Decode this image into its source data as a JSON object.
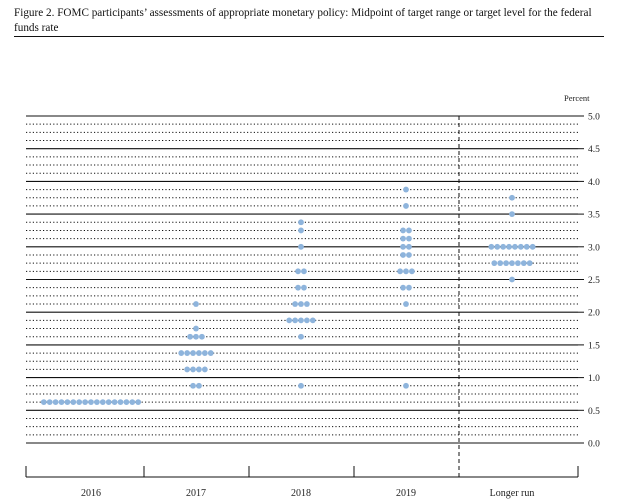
{
  "figure": {
    "title": "Figure 2. FOMC participants’ assessments of appropriate monetary policy: Midpoint of target range or target level for the federal funds rate"
  },
  "chart_data": {
    "type": "scatter",
    "title": "Figure 2. FOMC participants’ assessments of appropriate monetary policy: Midpoint of target range or target level for the federal funds rate",
    "ylabel": "Percent",
    "xlabel": "",
    "ylim": [
      0,
      5
    ],
    "yticks": [
      0.0,
      0.5,
      1.0,
      1.5,
      2.0,
      2.5,
      3.0,
      3.5,
      4.0,
      4.5,
      5.0
    ],
    "ytick_labels": [
      "0.0",
      "0.5",
      "1.0",
      "1.5",
      "2.0",
      "2.5",
      "3.0",
      "3.5",
      "4.0",
      "4.5",
      "5.0"
    ],
    "grid": "dotted horizontal every 0.125, solid every 0.5",
    "separator": "dashed vertical line between 2019 and Longer run",
    "categories": [
      "2016",
      "2017",
      "2018",
      "2019",
      "Longer run"
    ],
    "dot_color": "#8eb4dc",
    "dots": [
      {
        "category": "2016",
        "rates": [
          {
            "y": 0.625,
            "count": 17
          }
        ]
      },
      {
        "category": "2017",
        "rates": [
          {
            "y": 0.875,
            "count": 2
          },
          {
            "y": 1.125,
            "count": 4
          },
          {
            "y": 1.375,
            "count": 6
          },
          {
            "y": 1.625,
            "count": 3
          },
          {
            "y": 1.75,
            "count": 1
          },
          {
            "y": 2.125,
            "count": 1
          }
        ]
      },
      {
        "category": "2018",
        "rates": [
          {
            "y": 0.875,
            "count": 1
          },
          {
            "y": 1.625,
            "count": 1
          },
          {
            "y": 1.875,
            "count": 5
          },
          {
            "y": 2.125,
            "count": 3
          },
          {
            "y": 2.375,
            "count": 2
          },
          {
            "y": 2.625,
            "count": 2
          },
          {
            "y": 3.0,
            "count": 1
          },
          {
            "y": 3.25,
            "count": 1
          },
          {
            "y": 3.375,
            "count": 1
          }
        ]
      },
      {
        "category": "2019",
        "rates": [
          {
            "y": 0.875,
            "count": 1
          },
          {
            "y": 2.125,
            "count": 1
          },
          {
            "y": 2.375,
            "count": 2
          },
          {
            "y": 2.625,
            "count": 3
          },
          {
            "y": 2.875,
            "count": 2
          },
          {
            "y": 3.0,
            "count": 2
          },
          {
            "y": 3.125,
            "count": 2
          },
          {
            "y": 3.25,
            "count": 2
          },
          {
            "y": 3.625,
            "count": 1
          },
          {
            "y": 3.875,
            "count": 1
          }
        ]
      },
      {
        "category": "Longer run",
        "rates": [
          {
            "y": 2.5,
            "count": 1
          },
          {
            "y": 2.75,
            "count": 7
          },
          {
            "y": 3.0,
            "count": 8
          },
          {
            "y": 3.5,
            "count": 1
          },
          {
            "y": 3.75,
            "count": 1
          }
        ]
      }
    ]
  }
}
